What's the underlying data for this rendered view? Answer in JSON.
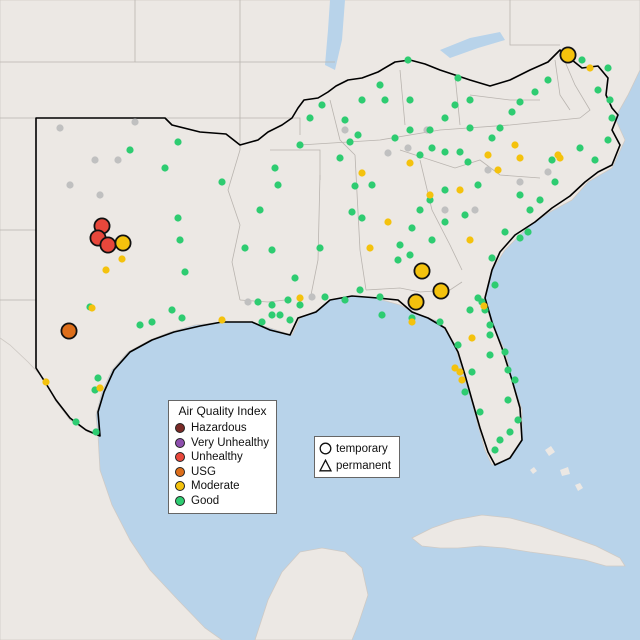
{
  "legend": {
    "title": "Air Quality Index",
    "items": [
      {
        "label": "Hazardous",
        "color": "#7a2a26"
      },
      {
        "label": "Very Unhealthy",
        "color": "#8e4fae"
      },
      {
        "label": "Unhealthy",
        "color": "#e8473b"
      },
      {
        "label": "USG",
        "color": "#dd6e1a"
      },
      {
        "label": "Moderate",
        "color": "#f4c20d"
      },
      {
        "label": "Good",
        "color": "#2ecc71"
      }
    ]
  },
  "site_legend": {
    "items": [
      {
        "label": "temporary",
        "shape": "circle-icon"
      },
      {
        "label": "permanent",
        "shape": "triangle-icon"
      }
    ]
  },
  "colors": {
    "water": "#b8d3ea",
    "land": "#ece8e4",
    "region_outline": "#000000",
    "unmonitored": "#c0c0c0"
  }
}
